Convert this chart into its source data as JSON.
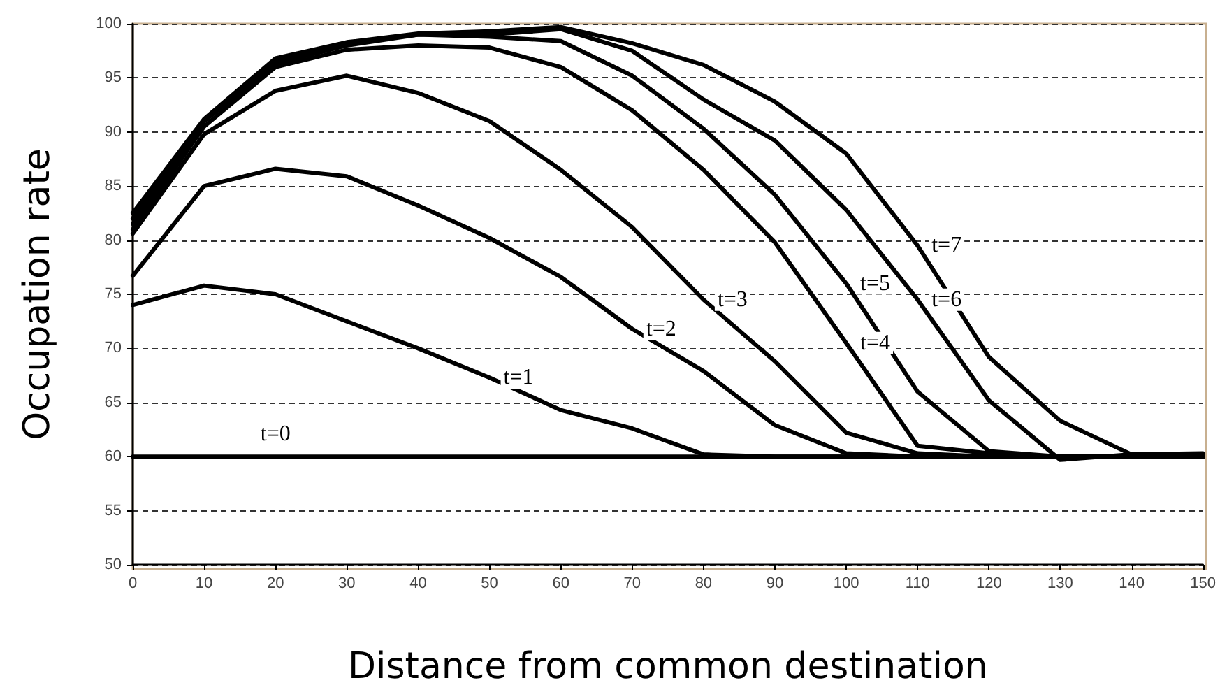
{
  "chart_data": {
    "type": "line",
    "xlabel": "Distance from common destination",
    "ylabel": "Occupation rate",
    "x": [
      0,
      10,
      20,
      30,
      40,
      50,
      60,
      70,
      80,
      90,
      100,
      110,
      120,
      130,
      140,
      150
    ],
    "series": [
      {
        "name": "t=0",
        "color": "#000000",
        "values": [
          60,
          60,
          60,
          60,
          60,
          60,
          60,
          60,
          60,
          60,
          60,
          60,
          60,
          60,
          60,
          60
        ]
      },
      {
        "name": "t=1",
        "color": "#000000",
        "values": [
          74,
          75.8,
          75,
          72.5,
          70,
          67.3,
          64.3,
          62.6,
          60.2,
          60,
          60,
          60,
          60,
          60,
          60,
          60
        ]
      },
      {
        "name": "t=2",
        "color": "#000000",
        "values": [
          76.7,
          85,
          86.6,
          85.9,
          83.2,
          80.2,
          76.6,
          71.8,
          67.9,
          62.9,
          60.3,
          60,
          60,
          60,
          60,
          60
        ]
      },
      {
        "name": "t=3",
        "color": "#000000",
        "values": [
          80.6,
          89.8,
          93.8,
          95.2,
          93.6,
          91,
          86.5,
          81.2,
          74.5,
          68.8,
          62.2,
          60.3,
          60,
          60,
          60,
          60
        ]
      },
      {
        "name": "t=4",
        "color": "#000000",
        "values": [
          81,
          90.5,
          96,
          97.6,
          98,
          97.8,
          96,
          92,
          86.5,
          79.8,
          70.5,
          61,
          60.3,
          60,
          60,
          60
        ]
      },
      {
        "name": "t=5",
        "color": "#000000",
        "values": [
          81.5,
          91,
          96.3,
          98,
          99,
          98.8,
          98.4,
          95.2,
          90.3,
          84.2,
          76,
          66,
          60.5,
          60,
          60,
          60
        ]
      },
      {
        "name": "t=6",
        "color": "#000000",
        "values": [
          82,
          91,
          96.5,
          98.2,
          99,
          99,
          99.5,
          97.5,
          93,
          89.2,
          82.8,
          74.5,
          65.2,
          59.7,
          60.2,
          60.2
        ]
      },
      {
        "name": "t=7",
        "color": "#000000",
        "values": [
          82.5,
          91.2,
          96.8,
          98.3,
          99.1,
          99.3,
          99.7,
          98.2,
          96.2,
          92.8,
          88,
          79.5,
          69.2,
          63.3,
          60.2,
          60.3
        ]
      }
    ],
    "xlim": [
      0,
      150
    ],
    "xticks": [
      0,
      10,
      20,
      30,
      40,
      50,
      60,
      70,
      80,
      90,
      100,
      110,
      120,
      130,
      140,
      150
    ],
    "ylim": [
      50,
      100
    ],
    "yticks": [
      50,
      55,
      60,
      65,
      70,
      75,
      80,
      85,
      90,
      95,
      100
    ],
    "grid": "y",
    "marker": "none",
    "line_style": "solid"
  }
}
